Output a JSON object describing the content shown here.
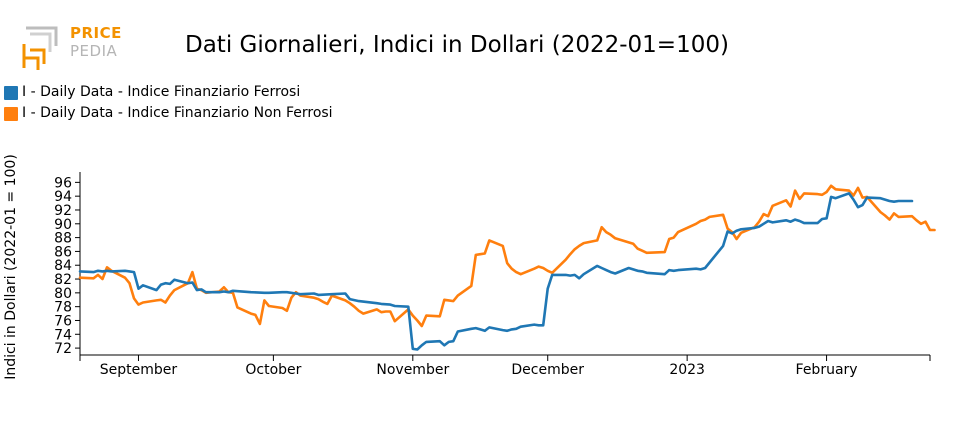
{
  "logo": {
    "line1": "PRICE",
    "line2": "PEDIA"
  },
  "colors": {
    "ferrosi": "#1f77b4",
    "non_ferrosi": "#ff7f0e",
    "logo_orange": "#f39200",
    "logo_gray": "#b5b5b5"
  },
  "chart_data": {
    "type": "line",
    "title": "Dati Giornalieri, Indici in Dollari (2022-01=100)",
    "xlabel": "",
    "ylabel": "Indici in Dollari (2022-01 = 100)",
    "x_range": [
      "2022-08-19",
      "2023-02-24"
    ],
    "ylim": [
      71,
      97.5
    ],
    "y_ticks": [
      72,
      74,
      76,
      78,
      80,
      82,
      84,
      86,
      88,
      90,
      92,
      94,
      96
    ],
    "x_ticks": [
      {
        "date": "2022-09-01",
        "label": "September"
      },
      {
        "date": "2022-10-01",
        "label": "October"
      },
      {
        "date": "2022-11-01",
        "label": "November"
      },
      {
        "date": "2022-12-01",
        "label": "December"
      },
      {
        "date": "2023-01-01",
        "label": "2023"
      },
      {
        "date": "2023-02-01",
        "label": "February"
      }
    ],
    "grid": false,
    "legend_position": "top-left",
    "series": [
      {
        "name": "I - Daily Data - Indice Finanziario Ferrosi",
        "color": "#1f77b4",
        "points": [
          [
            "2022-08-19",
            83.1
          ],
          [
            "2022-08-22",
            83.0
          ],
          [
            "2022-08-23",
            83.2
          ],
          [
            "2022-08-24",
            83.1
          ],
          [
            "2022-08-25",
            83.2
          ],
          [
            "2022-08-26",
            83.1
          ],
          [
            "2022-08-29",
            83.2
          ],
          [
            "2022-08-30",
            83.1
          ],
          [
            "2022-08-31",
            83.0
          ],
          [
            "2022-09-01",
            80.6
          ],
          [
            "2022-09-02",
            81.1
          ],
          [
            "2022-09-05",
            80.4
          ],
          [
            "2022-09-06",
            81.2
          ],
          [
            "2022-09-07",
            81.4
          ],
          [
            "2022-09-08",
            81.3
          ],
          [
            "2022-09-09",
            81.9
          ],
          [
            "2022-09-12",
            81.4
          ],
          [
            "2022-09-13",
            81.5
          ],
          [
            "2022-09-14",
            80.4
          ],
          [
            "2022-09-15",
            80.5
          ],
          [
            "2022-09-16",
            80.1
          ],
          [
            "2022-09-19",
            80.1
          ],
          [
            "2022-09-20",
            80.2
          ],
          [
            "2022-09-21",
            80.1
          ],
          [
            "2022-09-22",
            80.3
          ],
          [
            "2022-09-26",
            80.1
          ],
          [
            "2022-09-29",
            80.0
          ],
          [
            "2022-09-30",
            80.0
          ],
          [
            "2022-10-03",
            80.1
          ],
          [
            "2022-10-04",
            80.1
          ],
          [
            "2022-10-06",
            79.9
          ],
          [
            "2022-10-07",
            79.8
          ],
          [
            "2022-10-10",
            79.9
          ],
          [
            "2022-10-11",
            79.7
          ],
          [
            "2022-10-14",
            79.8
          ],
          [
            "2022-10-17",
            79.9
          ],
          [
            "2022-10-18",
            79.1
          ],
          [
            "2022-10-20",
            78.8
          ],
          [
            "2022-10-24",
            78.5
          ],
          [
            "2022-10-25",
            78.4
          ],
          [
            "2022-10-27",
            78.3
          ],
          [
            "2022-10-28",
            78.1
          ],
          [
            "2022-10-31",
            78.0
          ],
          [
            "2022-11-01",
            71.9
          ],
          [
            "2022-11-02",
            71.8
          ],
          [
            "2022-11-03",
            72.4
          ],
          [
            "2022-11-04",
            72.9
          ],
          [
            "2022-11-07",
            73.0
          ],
          [
            "2022-11-08",
            72.4
          ],
          [
            "2022-11-09",
            72.9
          ],
          [
            "2022-11-10",
            73.0
          ],
          [
            "2022-11-11",
            74.4
          ],
          [
            "2022-11-14",
            74.8
          ],
          [
            "2022-11-15",
            74.9
          ],
          [
            "2022-11-16",
            74.7
          ],
          [
            "2022-11-17",
            74.5
          ],
          [
            "2022-11-18",
            75.0
          ],
          [
            "2022-11-21",
            74.6
          ],
          [
            "2022-11-22",
            74.5
          ],
          [
            "2022-11-23",
            74.7
          ],
          [
            "2022-11-24",
            74.8
          ],
          [
            "2022-11-25",
            75.1
          ],
          [
            "2022-11-28",
            75.4
          ],
          [
            "2022-11-29",
            75.3
          ],
          [
            "2022-11-30",
            75.3
          ],
          [
            "2022-12-01",
            80.6
          ],
          [
            "2022-12-02",
            82.6
          ],
          [
            "2022-12-05",
            82.6
          ],
          [
            "2022-12-06",
            82.5
          ],
          [
            "2022-12-07",
            82.6
          ],
          [
            "2022-12-08",
            82.1
          ],
          [
            "2022-12-09",
            82.7
          ],
          [
            "2022-12-12",
            83.9
          ],
          [
            "2022-12-13",
            83.6
          ],
          [
            "2022-12-14",
            83.3
          ],
          [
            "2022-12-15",
            83.0
          ],
          [
            "2022-12-16",
            82.8
          ],
          [
            "2022-12-19",
            83.6
          ],
          [
            "2022-12-20",
            83.4
          ],
          [
            "2022-12-21",
            83.2
          ],
          [
            "2022-12-22",
            83.1
          ],
          [
            "2022-12-23",
            82.9
          ],
          [
            "2022-12-27",
            82.7
          ],
          [
            "2022-12-28",
            83.3
          ],
          [
            "2022-12-29",
            83.2
          ],
          [
            "2022-12-30",
            83.3
          ],
          [
            "2023-01-03",
            83.5
          ],
          [
            "2023-01-04",
            83.4
          ],
          [
            "2023-01-05",
            83.6
          ],
          [
            "2023-01-09",
            86.8
          ],
          [
            "2023-01-10",
            88.9
          ],
          [
            "2023-01-11",
            88.6
          ],
          [
            "2023-01-12",
            89.0
          ],
          [
            "2023-01-13",
            89.2
          ],
          [
            "2023-01-16",
            89.4
          ],
          [
            "2023-01-17",
            89.6
          ],
          [
            "2023-01-18",
            90.0
          ],
          [
            "2023-01-19",
            90.4
          ],
          [
            "2023-01-20",
            90.2
          ],
          [
            "2023-01-23",
            90.5
          ],
          [
            "2023-01-24",
            90.3
          ],
          [
            "2023-01-25",
            90.6
          ],
          [
            "2023-01-26",
            90.4
          ],
          [
            "2023-01-27",
            90.1
          ],
          [
            "2023-01-30",
            90.1
          ],
          [
            "2023-01-31",
            90.7
          ],
          [
            "2023-02-01",
            90.8
          ],
          [
            "2023-02-02",
            93.9
          ],
          [
            "2023-02-03",
            93.7
          ],
          [
            "2023-02-06",
            94.4
          ],
          [
            "2023-02-07",
            93.5
          ],
          [
            "2023-02-08",
            92.4
          ],
          [
            "2023-02-09",
            92.7
          ],
          [
            "2023-02-10",
            93.8
          ],
          [
            "2023-02-13",
            93.7
          ],
          [
            "2023-02-14",
            93.5
          ],
          [
            "2023-02-15",
            93.3
          ],
          [
            "2023-02-16",
            93.2
          ],
          [
            "2023-02-17",
            93.3
          ],
          [
            "2023-02-20",
            93.3
          ]
        ]
      },
      {
        "name": "I - Daily Data - Indice Finanziario Non Ferrosi",
        "color": "#ff7f0e",
        "points": [
          [
            "2022-08-19",
            82.2
          ],
          [
            "2022-08-22",
            82.1
          ],
          [
            "2022-08-23",
            82.6
          ],
          [
            "2022-08-24",
            82.0
          ],
          [
            "2022-08-25",
            83.7
          ],
          [
            "2022-08-26",
            83.2
          ],
          [
            "2022-08-29",
            82.2
          ],
          [
            "2022-08-30",
            81.4
          ],
          [
            "2022-08-31",
            79.2
          ],
          [
            "2022-09-01",
            78.3
          ],
          [
            "2022-09-02",
            78.6
          ],
          [
            "2022-09-05",
            78.9
          ],
          [
            "2022-09-06",
            79.0
          ],
          [
            "2022-09-07",
            78.6
          ],
          [
            "2022-09-08",
            79.6
          ],
          [
            "2022-09-09",
            80.4
          ],
          [
            "2022-09-12",
            81.4
          ],
          [
            "2022-09-13",
            83.0
          ],
          [
            "2022-09-14",
            80.6
          ],
          [
            "2022-09-15",
            80.4
          ],
          [
            "2022-09-16",
            80.0
          ],
          [
            "2022-09-19",
            80.2
          ],
          [
            "2022-09-20",
            80.8
          ],
          [
            "2022-09-21",
            80.1
          ],
          [
            "2022-09-22",
            80.0
          ],
          [
            "2022-09-23",
            77.9
          ],
          [
            "2022-09-26",
            77.0
          ],
          [
            "2022-09-27",
            76.8
          ],
          [
            "2022-09-28",
            75.5
          ],
          [
            "2022-09-29",
            78.9
          ],
          [
            "2022-09-30",
            78.1
          ],
          [
            "2022-10-03",
            77.8
          ],
          [
            "2022-10-04",
            77.4
          ],
          [
            "2022-10-05",
            79.3
          ],
          [
            "2022-10-06",
            80.1
          ],
          [
            "2022-10-07",
            79.6
          ],
          [
            "2022-10-10",
            79.3
          ],
          [
            "2022-10-11",
            79.1
          ],
          [
            "2022-10-12",
            78.7
          ],
          [
            "2022-10-13",
            78.4
          ],
          [
            "2022-10-14",
            79.6
          ],
          [
            "2022-10-17",
            78.9
          ],
          [
            "2022-10-18",
            78.5
          ],
          [
            "2022-10-19",
            78.0
          ],
          [
            "2022-10-20",
            77.4
          ],
          [
            "2022-10-21",
            77.0
          ],
          [
            "2022-10-24",
            77.6
          ],
          [
            "2022-10-25",
            77.2
          ],
          [
            "2022-10-26",
            77.3
          ],
          [
            "2022-10-27",
            77.3
          ],
          [
            "2022-10-28",
            75.9
          ],
          [
            "2022-10-31",
            77.6
          ],
          [
            "2022-11-01",
            76.7
          ],
          [
            "2022-11-02",
            76.0
          ],
          [
            "2022-11-03",
            75.2
          ],
          [
            "2022-11-04",
            76.7
          ],
          [
            "2022-11-07",
            76.6
          ],
          [
            "2022-11-08",
            79.0
          ],
          [
            "2022-11-09",
            78.9
          ],
          [
            "2022-11-10",
            78.8
          ],
          [
            "2022-11-11",
            79.6
          ],
          [
            "2022-11-14",
            81.0
          ],
          [
            "2022-11-15",
            85.5
          ],
          [
            "2022-11-16",
            85.6
          ],
          [
            "2022-11-17",
            85.7
          ],
          [
            "2022-11-18",
            87.6
          ],
          [
            "2022-11-21",
            86.8
          ],
          [
            "2022-11-22",
            84.3
          ],
          [
            "2022-11-23",
            83.5
          ],
          [
            "2022-11-24",
            83.0
          ],
          [
            "2022-11-25",
            82.7
          ],
          [
            "2022-11-28",
            83.5
          ],
          [
            "2022-11-29",
            83.8
          ],
          [
            "2022-11-30",
            83.6
          ],
          [
            "2022-12-01",
            83.2
          ],
          [
            "2022-12-02",
            82.9
          ],
          [
            "2022-12-05",
            84.8
          ],
          [
            "2022-12-06",
            85.6
          ],
          [
            "2022-12-07",
            86.3
          ],
          [
            "2022-12-08",
            86.8
          ],
          [
            "2022-12-09",
            87.2
          ],
          [
            "2022-12-12",
            87.6
          ],
          [
            "2022-12-13",
            89.5
          ],
          [
            "2022-12-14",
            88.8
          ],
          [
            "2022-12-15",
            88.4
          ],
          [
            "2022-12-16",
            87.9
          ],
          [
            "2022-12-19",
            87.3
          ],
          [
            "2022-12-20",
            87.1
          ],
          [
            "2022-12-21",
            86.4
          ],
          [
            "2022-12-22",
            86.1
          ],
          [
            "2022-12-23",
            85.8
          ],
          [
            "2022-12-27",
            85.9
          ],
          [
            "2022-12-28",
            87.8
          ],
          [
            "2022-12-29",
            88.0
          ],
          [
            "2022-12-30",
            88.8
          ],
          [
            "2023-01-03",
            90.0
          ],
          [
            "2023-01-04",
            90.4
          ],
          [
            "2023-01-05",
            90.6
          ],
          [
            "2023-01-06",
            91.0
          ],
          [
            "2023-01-09",
            91.3
          ],
          [
            "2023-01-10",
            89.3
          ],
          [
            "2023-01-11",
            88.8
          ],
          [
            "2023-01-12",
            87.8
          ],
          [
            "2023-01-13",
            88.7
          ],
          [
            "2023-01-16",
            89.5
          ],
          [
            "2023-01-17",
            90.3
          ],
          [
            "2023-01-18",
            91.4
          ],
          [
            "2023-01-19",
            91.1
          ],
          [
            "2023-01-20",
            92.6
          ],
          [
            "2023-01-23",
            93.4
          ],
          [
            "2023-01-24",
            92.5
          ],
          [
            "2023-01-25",
            94.8
          ],
          [
            "2023-01-26",
            93.6
          ],
          [
            "2023-01-27",
            94.4
          ],
          [
            "2023-01-30",
            94.3
          ],
          [
            "2023-01-31",
            94.2
          ],
          [
            "2023-02-01",
            94.6
          ],
          [
            "2023-02-02",
            95.5
          ],
          [
            "2023-02-03",
            95.0
          ],
          [
            "2023-02-06",
            94.8
          ],
          [
            "2023-02-07",
            94.1
          ],
          [
            "2023-02-08",
            95.2
          ],
          [
            "2023-02-09",
            93.8
          ],
          [
            "2023-02-10",
            93.9
          ],
          [
            "2023-02-13",
            91.7
          ],
          [
            "2023-02-14",
            91.2
          ],
          [
            "2023-02-15",
            90.6
          ],
          [
            "2023-02-16",
            91.5
          ],
          [
            "2023-02-17",
            91.0
          ],
          [
            "2023-02-20",
            91.1
          ],
          [
            "2023-02-21",
            90.5
          ],
          [
            "2023-02-22",
            90.0
          ],
          [
            "2023-02-23",
            90.3
          ],
          [
            "2023-02-24",
            89.1
          ],
          [
            "2023-02-25",
            89.1
          ]
        ]
      }
    ]
  }
}
